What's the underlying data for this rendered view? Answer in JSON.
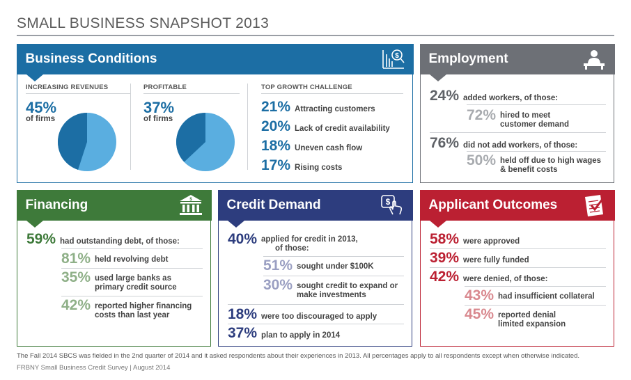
{
  "title": "SMALL BUSINESS SNAPSHOT 2013",
  "business_conditions": {
    "title": "Business Conditions",
    "increasing_revenues": {
      "label": "INCREASING REVENUES",
      "pct": "45%",
      "of": "of firms",
      "value": 45
    },
    "profitable": {
      "label": "PROFITABLE",
      "pct": "37%",
      "of": "of firms",
      "value": 37
    },
    "top_growth": {
      "label": "TOP GROWTH CHALLENGE",
      "items": [
        {
          "pct": "21%",
          "text": "Attracting customers"
        },
        {
          "pct": "20%",
          "text": "Lack of credit availability"
        },
        {
          "pct": "18%",
          "text": "Uneven cash flow"
        },
        {
          "pct": "17%",
          "text": "Rising costs"
        }
      ]
    },
    "colors": {
      "dark": "#1c6ea4",
      "light": "#5aaee0"
    }
  },
  "employment": {
    "title": "Employment",
    "added": {
      "pct": "24%",
      "text": "added workers, of those:"
    },
    "added_sub": {
      "pct": "72%",
      "text1": "hired to meet",
      "text2": "customer demand"
    },
    "not_added": {
      "pct": "76%",
      "text": "did not add workers, of those:"
    },
    "not_added_sub": {
      "pct": "50%",
      "text1": "held off due to high wages",
      "text2": "& benefit costs"
    }
  },
  "financing": {
    "title": "Financing",
    "main": {
      "pct": "59%",
      "text": "had outstanding debt, of those:"
    },
    "items": [
      {
        "pct": "81%",
        "text1": "held revolving debt",
        "text2": ""
      },
      {
        "pct": "35%",
        "text1": "used large banks as",
        "text2": "primary credit source"
      },
      {
        "pct": "42%",
        "text1": "reported higher financing",
        "text2": "costs than last year"
      }
    ]
  },
  "credit_demand": {
    "title": "Credit Demand",
    "main": {
      "pct": "40%",
      "text1": "applied for credit in 2013,",
      "text2": "of those:"
    },
    "items": [
      {
        "pct": "51%",
        "text1": "sought under $100K",
        "text2": ""
      },
      {
        "pct": "30%",
        "text1": "sought credit to expand or",
        "text2": "make investments"
      }
    ],
    "discouraged": {
      "pct": "18%",
      "text": "were too discouraged to apply"
    },
    "plan": {
      "pct": "37%",
      "text": "plan to apply in 2014"
    }
  },
  "applicant_outcomes": {
    "title": "Applicant Outcomes",
    "approved": {
      "pct": "58%",
      "text": "were approved"
    },
    "funded": {
      "pct": "39%",
      "text": "were fully funded"
    },
    "denied": {
      "pct": "42%",
      "text": "were denied, of those:"
    },
    "items": [
      {
        "pct": "43%",
        "text1": "had insufficient collateral",
        "text2": ""
      },
      {
        "pct": "45%",
        "text1": "reported denial",
        "text2": "limited expansion"
      }
    ]
  },
  "footnote": "The Fall 2014 SBCS was fielded in the 2nd quarter of 2014 and it asked respondents about their experiences in 2013. All percentages apply to all respondents except when otherwise indicated.",
  "source": "FRBNY Small Business Credit Survey  |  August 2014",
  "icons": {
    "business_conditions": "chart-dollar-icon",
    "employment": "worker-desk-icon",
    "financing": "bank-icon",
    "credit_demand": "dollar-tap-icon",
    "applicant_outcomes": "checklist-icon"
  }
}
